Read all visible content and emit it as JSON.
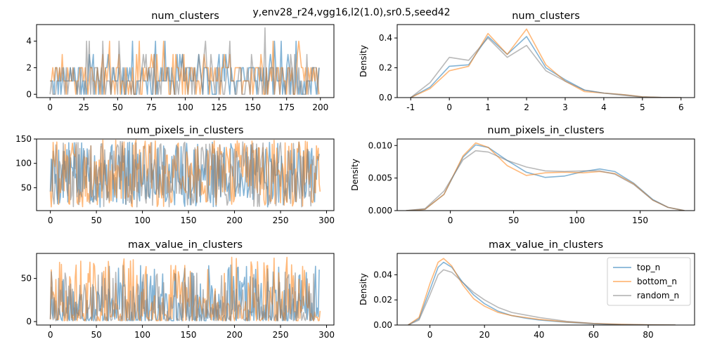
{
  "figure": {
    "suptitle": "y,env28_r24,vgg16,l2(1.0),sr0.5,seed42"
  },
  "colors": {
    "top_n": "#1f77b4",
    "bottom_n": "#ff7f0e",
    "random_n": "#7f7f7f"
  },
  "legend": {
    "placement": "upper right",
    "panel": "max_value_in_clusters_density",
    "entries": [
      "top_n",
      "bottom_n",
      "random_n"
    ]
  },
  "chart_data": [
    {
      "id": "num_clusters_trace",
      "type": "line",
      "title": "num_clusters",
      "xlabel": "",
      "ylabel": "",
      "xlim": [
        -10,
        210
      ],
      "ylim": [
        -0.25,
        5.25
      ],
      "xticks": [
        0,
        25,
        50,
        75,
        100,
        125,
        150,
        175,
        200
      ],
      "yticks": [
        0,
        2,
        4
      ],
      "series": [
        {
          "name": "top_n",
          "n": 200,
          "seed": 11,
          "kind": "discrete",
          "values": [
            0,
            1,
            2,
            3,
            4
          ],
          "weights": [
            0.2,
            0.38,
            0.3,
            0.09,
            0.03
          ]
        },
        {
          "name": "bottom_n",
          "n": 200,
          "seed": 23,
          "kind": "discrete",
          "values": [
            0,
            1,
            2,
            3,
            4
          ],
          "weights": [
            0.16,
            0.38,
            0.36,
            0.07,
            0.03
          ]
        },
        {
          "name": "random_n",
          "n": 200,
          "seed": 37,
          "kind": "discrete",
          "values": [
            0,
            1,
            2,
            3,
            4,
            5
          ],
          "weights": [
            0.26,
            0.38,
            0.28,
            0.05,
            0.025,
            0.005
          ]
        }
      ]
    },
    {
      "id": "num_clusters_density",
      "type": "line",
      "title": "num_clusters",
      "xlabel": "",
      "ylabel": "Density",
      "xlim": [
        -1.35,
        6.35
      ],
      "ylim": [
        0,
        0.49
      ],
      "xticks": [
        -1,
        0,
        1,
        2,
        3,
        4,
        5,
        6
      ],
      "yticks": [
        0.0,
        0.2,
        0.4
      ],
      "tick_decimals": 1,
      "series": [
        {
          "name": "top_n",
          "x": [
            -1,
            -0.5,
            0,
            0.5,
            1,
            1.5,
            2,
            2.5,
            3,
            3.5,
            4,
            4.5,
            5,
            5.5,
            6
          ],
          "y": [
            0.0,
            0.07,
            0.21,
            0.22,
            0.41,
            0.29,
            0.41,
            0.2,
            0.12,
            0.05,
            0.03,
            0.02,
            0.005,
            0.001,
            0.0
          ]
        },
        {
          "name": "bottom_n",
          "x": [
            -1,
            -0.5,
            0,
            0.5,
            1,
            1.5,
            2,
            2.5,
            3,
            3.5,
            4,
            4.5,
            5,
            5.5,
            6
          ],
          "y": [
            0.0,
            0.06,
            0.18,
            0.21,
            0.43,
            0.29,
            0.46,
            0.22,
            0.11,
            0.04,
            0.03,
            0.02,
            0.005,
            0.001,
            0.0
          ]
        },
        {
          "name": "random_n",
          "x": [
            -1,
            -0.5,
            0,
            0.5,
            1,
            1.5,
            2,
            2.5,
            3,
            3.5,
            4,
            4.5,
            5,
            5.5,
            6
          ],
          "y": [
            0.0,
            0.1,
            0.27,
            0.25,
            0.4,
            0.27,
            0.35,
            0.18,
            0.11,
            0.05,
            0.03,
            0.015,
            0.004,
            0.001,
            0.0
          ]
        }
      ]
    },
    {
      "id": "num_pixels_in_clusters_trace",
      "type": "line",
      "title": "num_pixels_in_clusters",
      "xlabel": "",
      "ylabel": "",
      "xlim": [
        -15,
        308
      ],
      "ylim": [
        3,
        150
      ],
      "xticks": [
        0,
        50,
        100,
        150,
        200,
        250,
        300
      ],
      "yticks": [
        50,
        100,
        150
      ],
      "series": [
        {
          "name": "top_n",
          "n": 293,
          "seed": 5,
          "kind": "uniform",
          "min": 10,
          "max": 145
        },
        {
          "name": "bottom_n",
          "n": 294,
          "seed": 8,
          "kind": "uniform",
          "min": 10,
          "max": 148
        },
        {
          "name": "random_n",
          "n": 288,
          "seed": 13,
          "kind": "uniform",
          "min": 10,
          "max": 145
        }
      ]
    },
    {
      "id": "num_pixels_in_clusters_density",
      "type": "line",
      "title": "num_pixels_in_clusters",
      "xlabel": "",
      "ylabel": "Density",
      "xlim": [
        -42,
        193
      ],
      "ylim": [
        0,
        0.011
      ],
      "xticks": [
        0,
        50,
        100,
        150
      ],
      "yticks": [
        0.0,
        0.005,
        0.01
      ],
      "tick_decimals": 3,
      "series": [
        {
          "name": "top_n",
          "x": [
            -35,
            -20,
            -5,
            10,
            20,
            30,
            45,
            60,
            75,
            90,
            105,
            118,
            130,
            145,
            160,
            172,
            185
          ],
          "y": [
            0.0,
            0.0002,
            0.0025,
            0.0082,
            0.0101,
            0.0097,
            0.0077,
            0.0059,
            0.0051,
            0.0053,
            0.006,
            0.0064,
            0.006,
            0.0042,
            0.0017,
            0.0005,
            0.0
          ]
        },
        {
          "name": "bottom_n",
          "x": [
            -35,
            -20,
            -5,
            10,
            20,
            30,
            45,
            60,
            75,
            90,
            105,
            118,
            130,
            145,
            160,
            172,
            185
          ],
          "y": [
            0.0,
            0.0002,
            0.0025,
            0.0084,
            0.0104,
            0.0097,
            0.0069,
            0.0054,
            0.0058,
            0.0059,
            0.0058,
            0.006,
            0.0057,
            0.0041,
            0.0016,
            0.0005,
            0.0
          ]
        },
        {
          "name": "random_n",
          "x": [
            -35,
            -20,
            -5,
            10,
            20,
            30,
            45,
            60,
            75,
            90,
            105,
            118,
            130,
            145,
            160,
            172,
            185
          ],
          "y": [
            0.0,
            0.0003,
            0.003,
            0.0078,
            0.0092,
            0.009,
            0.0077,
            0.0067,
            0.0061,
            0.006,
            0.0061,
            0.0061,
            0.0056,
            0.004,
            0.0016,
            0.0005,
            0.0
          ]
        }
      ]
    },
    {
      "id": "max_value_in_clusters_trace",
      "type": "line",
      "title": "max_value_in_clusters",
      "xlabel": "",
      "ylabel": "",
      "xlim": [
        -15,
        308
      ],
      "ylim": [
        -4,
        79
      ],
      "xticks": [
        0,
        50,
        100,
        150,
        200,
        250,
        300
      ],
      "yticks": [
        0,
        50
      ],
      "series": [
        {
          "name": "top_n",
          "n": 293,
          "seed": 17,
          "kind": "skewed",
          "min": 1,
          "max": 66,
          "power": 2.6
        },
        {
          "name": "bottom_n",
          "n": 294,
          "seed": 29,
          "kind": "skewed",
          "min": 1,
          "max": 78,
          "power": 2.8
        },
        {
          "name": "random_n",
          "n": 288,
          "seed": 41,
          "kind": "skewed",
          "min": 1,
          "max": 58,
          "power": 2.3
        }
      ]
    },
    {
      "id": "max_value_in_clusters_density",
      "type": "line",
      "title": "max_value_in_clusters",
      "xlabel": "",
      "ylabel": "Density",
      "xlim": [
        -12,
        97
      ],
      "ylim": [
        0,
        0.057
      ],
      "xticks": [
        0,
        20,
        40,
        60,
        80
      ],
      "yticks": [
        0.0,
        0.02,
        0.04
      ],
      "tick_decimals": 2,
      "series": [
        {
          "name": "top_n",
          "x": [
            -8,
            -4,
            0,
            3,
            5,
            8,
            12,
            16,
            20,
            25,
            30,
            35,
            40,
            50,
            60,
            70,
            80,
            90
          ],
          "y": [
            0.0,
            0.005,
            0.028,
            0.046,
            0.05,
            0.046,
            0.034,
            0.024,
            0.017,
            0.011,
            0.0075,
            0.0055,
            0.004,
            0.0022,
            0.001,
            0.0004,
            0.0001,
            0.0
          ]
        },
        {
          "name": "bottom_n",
          "x": [
            -8,
            -4,
            0,
            3,
            5,
            8,
            12,
            16,
            20,
            25,
            30,
            35,
            40,
            50,
            60,
            70,
            80,
            90
          ],
          "y": [
            0.0,
            0.006,
            0.033,
            0.05,
            0.053,
            0.047,
            0.032,
            0.021,
            0.015,
            0.01,
            0.0075,
            0.006,
            0.0045,
            0.0025,
            0.0012,
            0.0006,
            0.0002,
            0.0
          ]
        },
        {
          "name": "random_n",
          "x": [
            -8,
            -4,
            0,
            3,
            5,
            8,
            12,
            16,
            20,
            25,
            30,
            35,
            40,
            50,
            60,
            70,
            80,
            90
          ],
          "y": [
            0.0,
            0.004,
            0.024,
            0.04,
            0.044,
            0.042,
            0.034,
            0.026,
            0.02,
            0.014,
            0.01,
            0.008,
            0.006,
            0.003,
            0.0012,
            0.0004,
            0.0001,
            0.0
          ]
        }
      ]
    }
  ]
}
